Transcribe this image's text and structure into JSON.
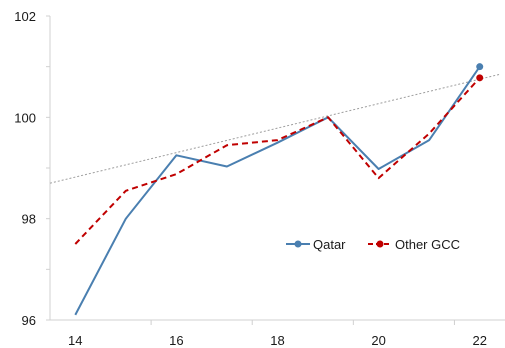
{
  "chart_data": {
    "type": "line",
    "title": "",
    "xlabel": "",
    "ylabel": "",
    "x": [
      14,
      15,
      16,
      17,
      18,
      19,
      20,
      21,
      22
    ],
    "xlim": [
      13.5,
      22.5
    ],
    "ylim": [
      96,
      102
    ],
    "xticks": [
      "14",
      "16",
      "18",
      "20",
      "22"
    ],
    "yticks": [
      "96",
      "98",
      "100",
      "102"
    ],
    "grid": false,
    "legend_position": "right",
    "series": [
      {
        "name": "Qatar",
        "values": [
          96.1,
          98.0,
          99.25,
          99.03,
          99.5,
          100.0,
          98.98,
          99.55,
          101.0
        ],
        "color": "#4a7fb0",
        "style": "solid"
      },
      {
        "name": "Other GCC",
        "values": [
          97.5,
          98.55,
          98.88,
          99.45,
          99.55,
          100.0,
          98.8,
          99.68,
          100.78
        ],
        "color": "#c00000",
        "style": "dashed"
      }
    ],
    "trendline": {
      "x": [
        13.5,
        22.4
      ],
      "values": [
        98.7,
        100.85
      ],
      "color": "#9e9e9e",
      "style": "dotted"
    }
  }
}
